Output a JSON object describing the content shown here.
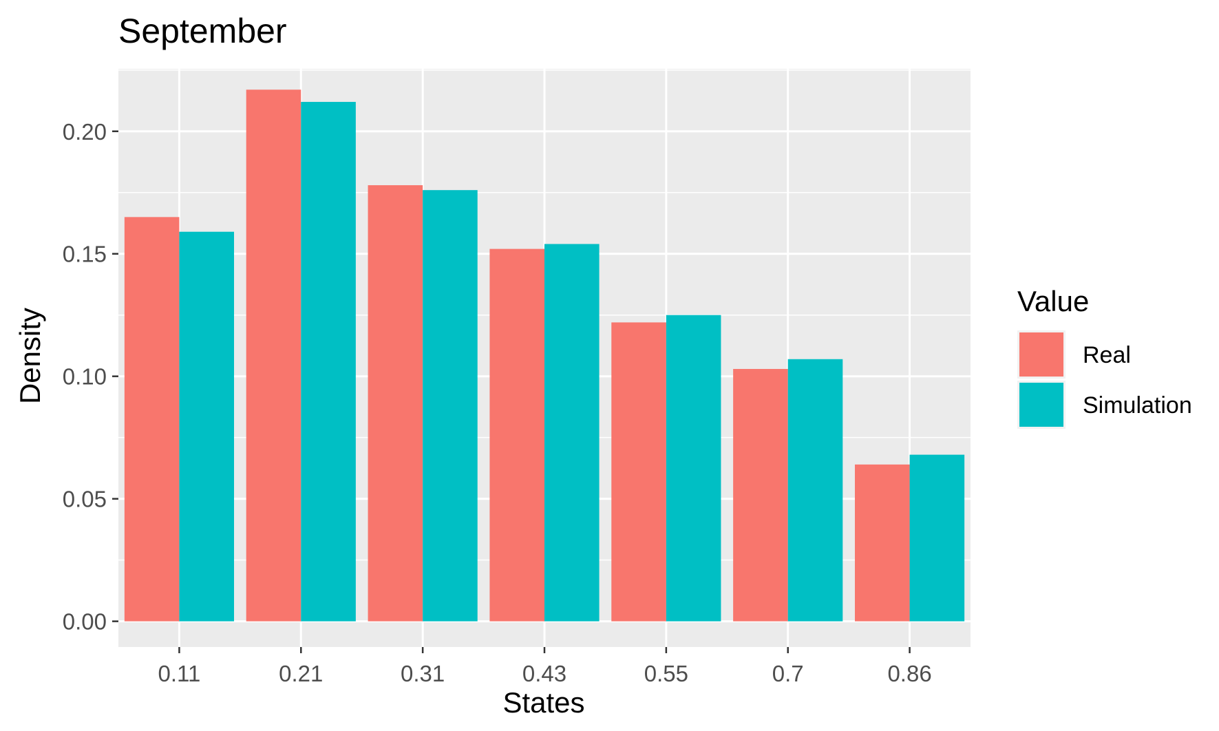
{
  "chart_data": {
    "type": "bar",
    "title": "September",
    "xlabel": "States",
    "ylabel": "Density",
    "categories": [
      "0.11",
      "0.21",
      "0.31",
      "0.43",
      "0.55",
      "0.7",
      "0.86"
    ],
    "series": [
      {
        "name": "Real",
        "color": "#F8766D",
        "values": [
          0.165,
          0.217,
          0.178,
          0.152,
          0.122,
          0.103,
          0.064
        ]
      },
      {
        "name": "Simulation",
        "color": "#00BFC4",
        "values": [
          0.159,
          0.212,
          0.176,
          0.154,
          0.125,
          0.107,
          0.068
        ]
      }
    ],
    "ylim": [
      -0.0105,
      0.2255
    ],
    "yticks": [
      0.0,
      0.05,
      0.1,
      0.15,
      0.2
    ],
    "ytick_labels": [
      "0.00",
      "0.05",
      "0.10",
      "0.15",
      "0.20"
    ],
    "grid": true,
    "legend": {
      "title": "Value",
      "position": "right"
    },
    "panel_background": "#EBEBEB"
  }
}
